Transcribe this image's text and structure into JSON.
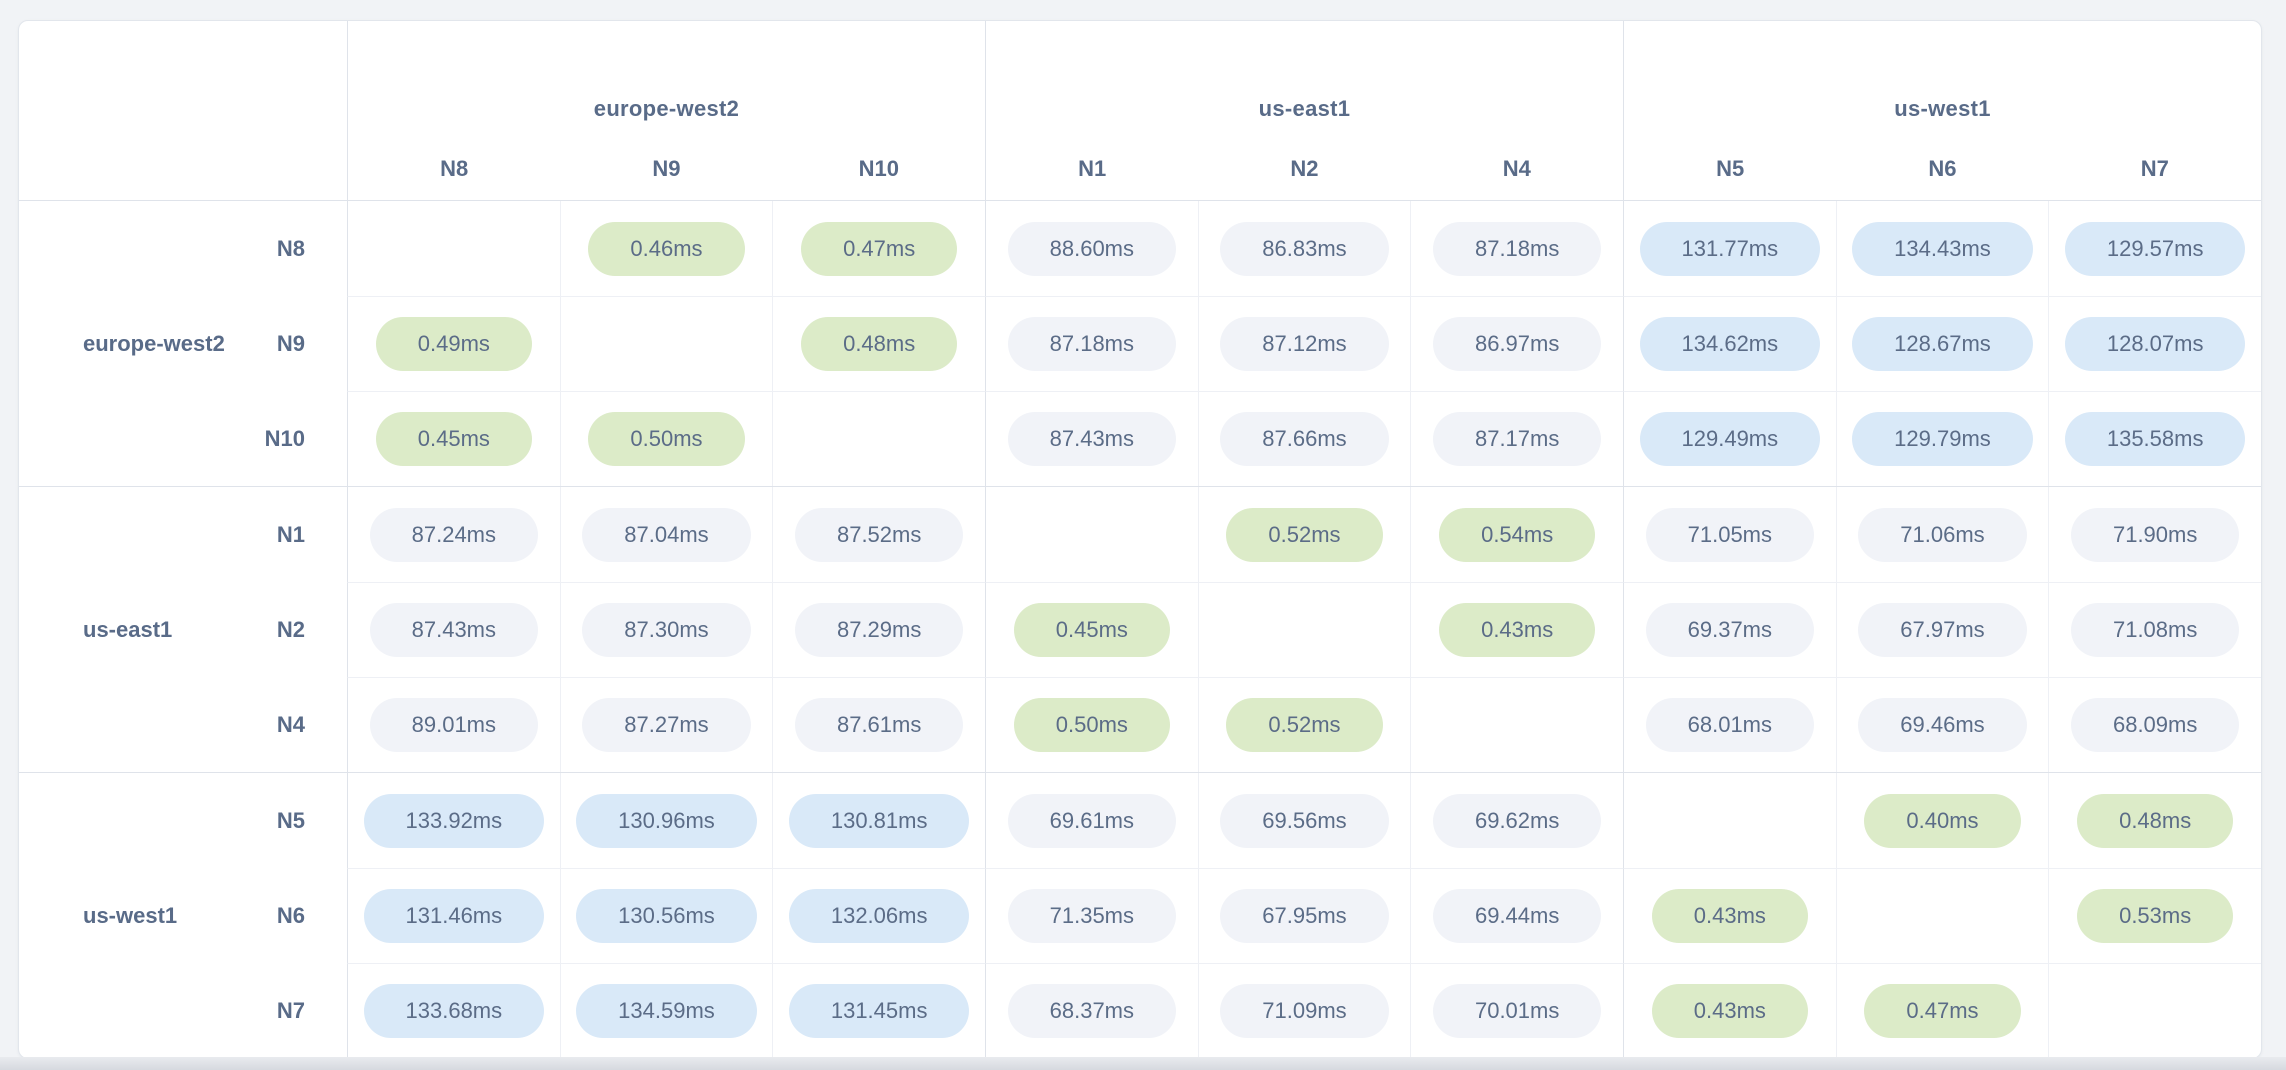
{
  "chart_data": {
    "type": "heatmap",
    "unit": "ms",
    "description_visible_text_only": true,
    "col_groups": [
      {
        "label": "europe-west2",
        "nodes": [
          "N8",
          "N9",
          "N10"
        ]
      },
      {
        "label": "us-east1",
        "nodes": [
          "N1",
          "N2",
          "N4"
        ]
      },
      {
        "label": "us-west1",
        "nodes": [
          "N5",
          "N6",
          "N7"
        ]
      }
    ],
    "row_groups": [
      {
        "label": "europe-west2",
        "nodes": [
          "N8",
          "N9",
          "N10"
        ]
      },
      {
        "label": "us-east1",
        "nodes": [
          "N1",
          "N2",
          "N4"
        ]
      },
      {
        "label": "us-west1",
        "nodes": [
          "N5",
          "N6",
          "N7"
        ]
      }
    ],
    "matrix_ms": [
      [
        null,
        0.46,
        0.47,
        88.6,
        86.83,
        87.18,
        131.77,
        134.43,
        129.57
      ],
      [
        0.49,
        null,
        0.48,
        87.18,
        87.12,
        86.97,
        134.62,
        128.67,
        128.07
      ],
      [
        0.45,
        0.5,
        null,
        87.43,
        87.66,
        87.17,
        129.49,
        129.79,
        135.58
      ],
      [
        87.24,
        87.04,
        87.52,
        null,
        0.52,
        0.54,
        71.05,
        71.06,
        71.9
      ],
      [
        87.43,
        87.3,
        87.29,
        0.45,
        null,
        0.43,
        69.37,
        67.97,
        71.08
      ],
      [
        89.01,
        87.27,
        87.61,
        0.5,
        0.52,
        null,
        68.01,
        69.46,
        68.09
      ],
      [
        133.92,
        130.96,
        130.81,
        69.61,
        69.56,
        69.62,
        null,
        0.4,
        0.48
      ],
      [
        131.46,
        130.56,
        132.06,
        71.35,
        67.95,
        69.44,
        0.43,
        null,
        0.53
      ],
      [
        133.68,
        134.59,
        131.45,
        68.37,
        71.09,
        70.01,
        0.43,
        0.47,
        null
      ]
    ],
    "value_suffix": "ms",
    "color_scale": {
      "green_below_ms": 1,
      "blue_at_or_above_ms": 100,
      "green": "#dcebc8",
      "gray": "#f1f3f8",
      "blue": "#d9e9f8"
    },
    "layout_hints": {
      "grid": "on",
      "diagonal_cells": "empty",
      "legend": "none"
    }
  }
}
